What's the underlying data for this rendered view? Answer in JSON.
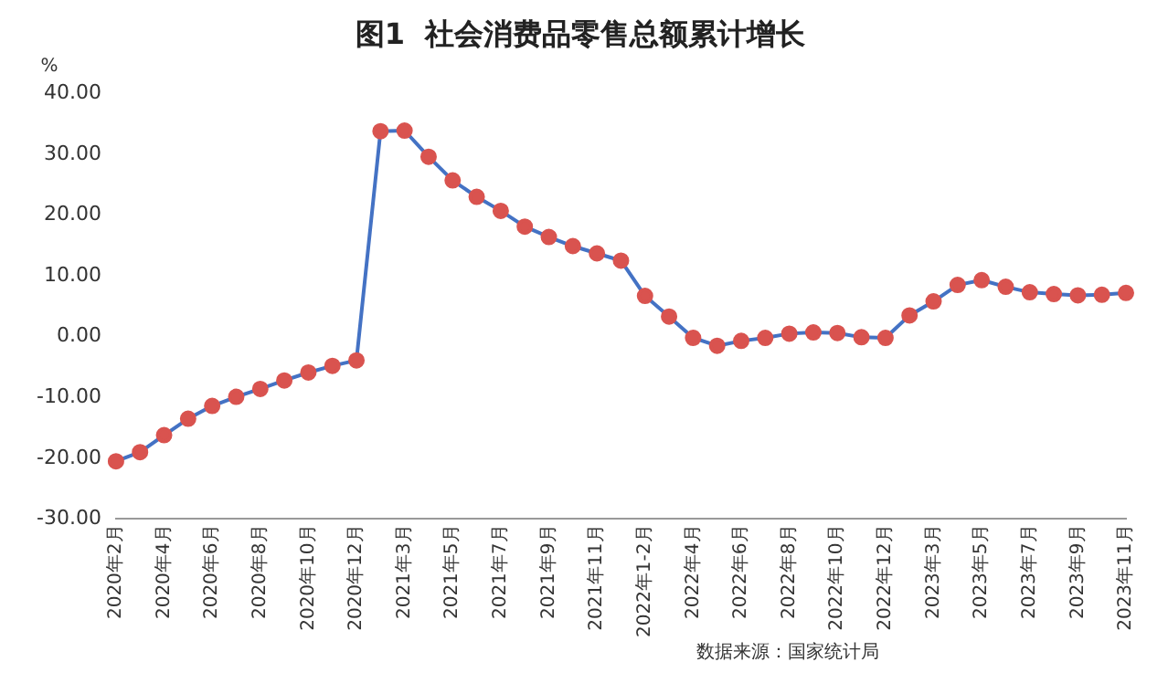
{
  "chart_data": {
    "type": "line",
    "title": "图1  社会消费品零售总额累计增长",
    "ylabel": "%",
    "categories": [
      "2020年2月",
      null,
      "2020年4月",
      null,
      "2020年6月",
      null,
      "2020年8月",
      null,
      "2020年10月",
      null,
      "2020年12月",
      null,
      "2021年3月",
      null,
      "2021年5月",
      null,
      "2021年7月",
      null,
      "2021年9月",
      null,
      "2021年11月",
      null,
      "2022年1-2月",
      null,
      "2022年4月",
      null,
      "2022年6月",
      null,
      "2022年8月",
      null,
      "2022年10月",
      null,
      "2022年12月",
      null,
      "2023年3月",
      null,
      "2023年5月",
      null,
      "2023年7月",
      null,
      "2023年9月",
      null,
      "2023年11月"
    ],
    "series": [
      {
        "color": "#4472c4",
        "colors": [
          "#d9534f",
          "#d9534f",
          "#d9534f",
          "#d9534f",
          "#d9534f",
          "#d9534f",
          "#d9534f",
          "#d9534f",
          "#d9534f",
          "#d9534f",
          "#d9534f",
          "#d9534f",
          "#d9534f",
          "#d9534f",
          "#d9534f",
          "#d9534f",
          "#d9534f",
          "#d9534f",
          "#d9534f",
          "#d9534f",
          "#d9534f",
          "#d9534f",
          "#d9534f",
          "#d9534f",
          "#d9534f",
          "#d9534f",
          "#d9534f",
          "#d9534f",
          "#d9534f",
          "#d9534f",
          "#d9534f",
          "#d9534f",
          "#d9534f",
          "#d9534f",
          "#d9534f",
          "#d9534f",
          "#d9534f",
          "#d9534f",
          "#d9534f",
          "#d9534f",
          "#d9534f",
          "#d9534f",
          "#d9534f"
        ],
        "values": [
          -20.5,
          -19.0,
          -16.2,
          -13.5,
          -11.4,
          -9.9,
          -8.6,
          -7.2,
          -5.9,
          -4.8,
          -3.9,
          33.8,
          33.9,
          29.6,
          25.7,
          23.0,
          20.7,
          18.1,
          16.4,
          14.9,
          13.7,
          12.5,
          6.7,
          3.3,
          -0.2,
          -1.5,
          -0.7,
          -0.2,
          0.5,
          0.7,
          0.6,
          -0.1,
          -0.2,
          3.5,
          5.8,
          8.5,
          9.3,
          8.2,
          7.3,
          7.0,
          6.8,
          6.9,
          7.2
        ]
      }
    ],
    "marker": "circle",
    "ylim": [
      -30,
      40
    ],
    "yticks": [
      {
        "value": -30,
        "label": "-30.00"
      },
      {
        "value": -20,
        "label": "-20.00"
      },
      {
        "value": -10,
        "label": "-10.00"
      },
      {
        "value": 0,
        "label": "0.00"
      },
      {
        "value": 10,
        "label": "10.00"
      },
      {
        "value": 20,
        "label": "20.00"
      },
      {
        "value": 30,
        "label": "30.00"
      },
      {
        "value": 40,
        "label": "40.00"
      }
    ],
    "grid": false,
    "legend": false,
    "annotations": [
      "数据来源：国家统计局"
    ]
  }
}
